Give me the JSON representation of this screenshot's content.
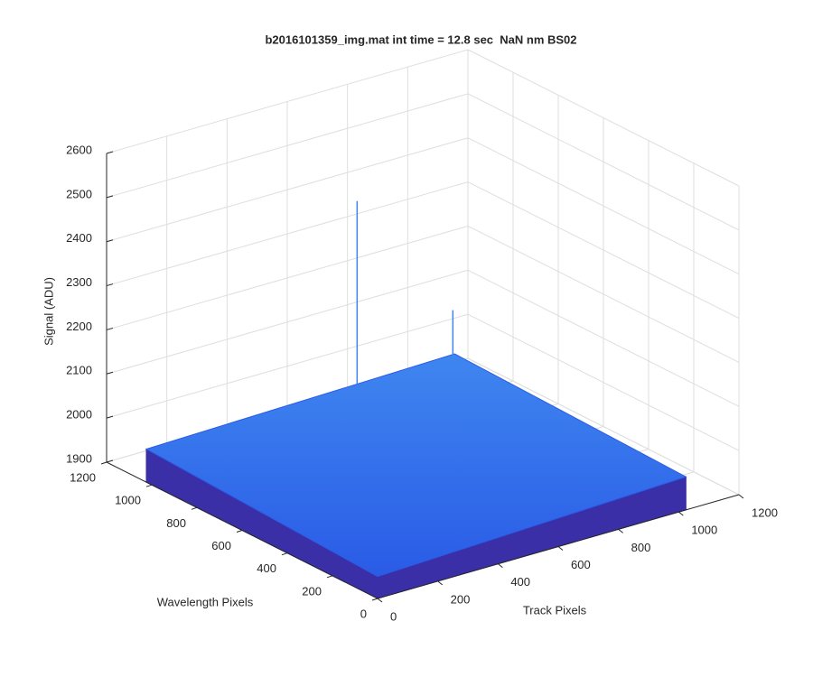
{
  "chart_data": {
    "type": "surface",
    "title": "b2016101359_img.mat int time = 12.8 sec  NaN nm BS02",
    "xlabel": "Track Pixels",
    "ylabel": "Wavelength Pixels",
    "zlabel": "Signal (ADU)",
    "xlim": [
      0,
      1200
    ],
    "xticks": [
      0,
      200,
      400,
      600,
      800,
      1000,
      1200
    ],
    "ylim": [
      0,
      1200
    ],
    "yticks": [
      0,
      200,
      400,
      600,
      800,
      1000,
      1200
    ],
    "zlim": [
      1900,
      2600
    ],
    "zticks": [
      1900,
      2000,
      2100,
      2200,
      2300,
      2400,
      2500,
      2600
    ],
    "grid": true,
    "colormap": [
      "#3b2fa8",
      "#2a5be6",
      "#3f86f0"
    ],
    "surface": {
      "x": [
        0,
        1024
      ],
      "y": [
        0,
        1024
      ],
      "z": [
        [
          1950,
          1975
        ],
        [
          1975,
          1990
        ]
      ]
    },
    "peaks": [
      {
        "x": 700,
        "y": 1024,
        "z": 2400
      },
      {
        "x": 1000,
        "y": 1000,
        "z": 2100
      }
    ]
  }
}
